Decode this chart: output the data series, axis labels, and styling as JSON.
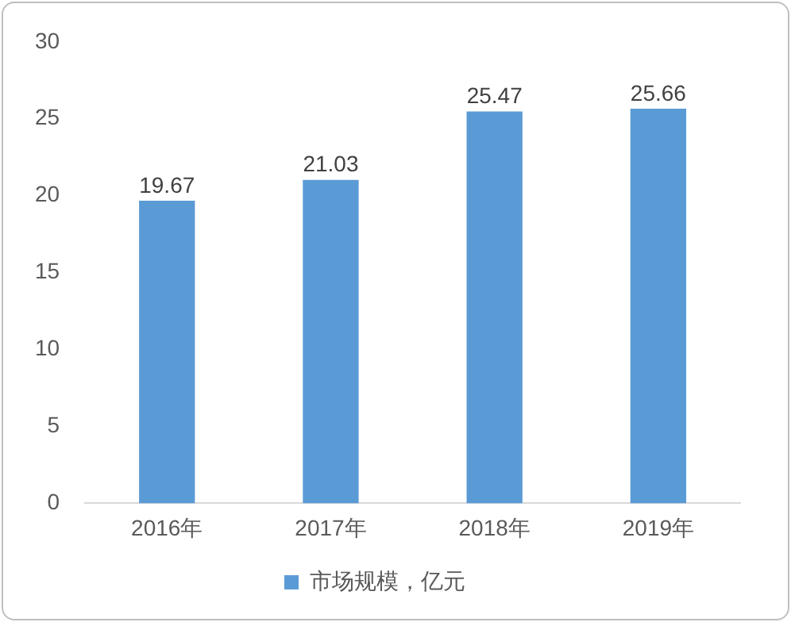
{
  "chart_data": {
    "type": "bar",
    "categories": [
      "2016年",
      "2017年",
      "2018年",
      "2019年"
    ],
    "series": [
      {
        "name": "市场规模，亿元",
        "color": "#5b9bd5",
        "values": [
          19.67,
          21.03,
          25.47,
          25.66
        ]
      }
    ],
    "ylim": [
      0,
      30
    ],
    "yticks": [
      0,
      5,
      10,
      15,
      20,
      25,
      30
    ],
    "grid": false,
    "legend": "bottom",
    "data_labels": true
  }
}
